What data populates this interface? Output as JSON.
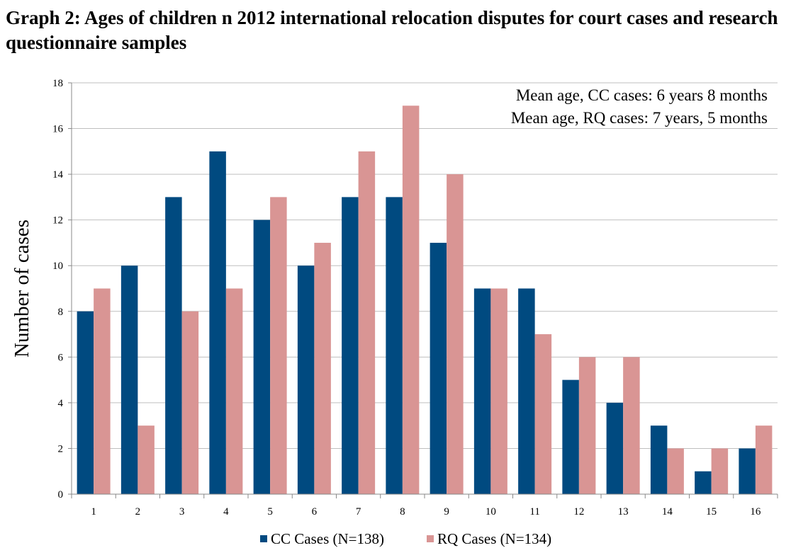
{
  "chart_data": {
    "type": "bar",
    "title": "Graph 2: Ages of children n 2012 international relocation disputes for court cases and research questionnaire samples",
    "xlabel": "",
    "ylabel": "Number of cases",
    "categories": [
      "1",
      "2",
      "3",
      "4",
      "5",
      "6",
      "7",
      "8",
      "9",
      "10",
      "11",
      "12",
      "13",
      "14",
      "15",
      "16"
    ],
    "series": [
      {
        "name": "CC Cases (N=138)",
        "color": "#004a80",
        "values": [
          8,
          10,
          13,
          15,
          12,
          10,
          13,
          13,
          11,
          9,
          9,
          5,
          4,
          3,
          1,
          2
        ]
      },
      {
        "name": "RQ Cases (N=134)",
        "color": "#d99594",
        "values": [
          9,
          3,
          8,
          9,
          13,
          11,
          15,
          17,
          14,
          9,
          7,
          6,
          6,
          2,
          2,
          3
        ]
      }
    ],
    "ylim": [
      0,
      18
    ],
    "yticks": [
      0,
      2,
      4,
      6,
      8,
      10,
      12,
      14,
      16,
      18
    ],
    "grid": true,
    "legend": "bottom",
    "annotations": [
      "Mean age, CC cases:  6 years 8 months",
      "Mean age, RQ cases:  7 years, 5 months"
    ]
  }
}
